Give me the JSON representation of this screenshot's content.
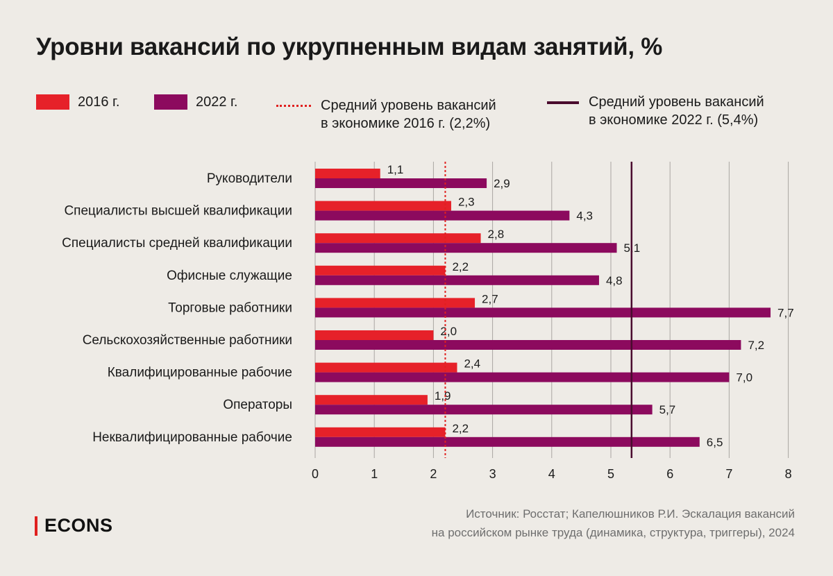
{
  "chart_data": {
    "type": "bar",
    "orientation": "horizontal",
    "title": "Уровни вакансий по укрупненным видам занятий, %",
    "categories": [
      "Руководители",
      "Специалисты высшей квалификации",
      "Специалисты средней квалификации",
      "Офисные служащие",
      "Торговые работники",
      "Сельскохозяйственные работники",
      "Квалифицированные рабочие",
      "Операторы",
      "Неквалифицированные рабочие"
    ],
    "series": [
      {
        "name": "2016 г.",
        "color": "#e62129",
        "values": [
          1.1,
          2.3,
          2.8,
          2.2,
          2.7,
          2.0,
          2.4,
          1.9,
          2.2
        ],
        "labels": [
          "1,1",
          "2,3",
          "2,8",
          "2,2",
          "2,7",
          "2,0",
          "2,4",
          "1,9",
          "2,2"
        ]
      },
      {
        "name": "2022 г.",
        "color": "#8c0a5e",
        "values": [
          2.9,
          4.3,
          5.1,
          4.8,
          7.7,
          7.2,
          7.0,
          5.7,
          6.5
        ],
        "labels": [
          "2,9",
          "4,3",
          "5,1",
          "4,8",
          "7,7",
          "7,2",
          "7,0",
          "5,7",
          "6,5"
        ]
      }
    ],
    "reference_lines": [
      {
        "name": "Средний уровень вакансий\nв экономике 2016 г. (2,2%)",
        "value": 2.2,
        "style": "dotted",
        "color": "#e0201f"
      },
      {
        "name": "Средний уровень вакансий\nв экономике 2022 г. (5,4%)",
        "value": 5.35,
        "style": "solid",
        "color": "#4a0b2e"
      }
    ],
    "xlim": [
      0,
      8
    ],
    "xticks": [
      0,
      1,
      2,
      3,
      4,
      5,
      6,
      7,
      8
    ],
    "grid": true,
    "legend_position": "top"
  },
  "brand": "ECONS",
  "source": "Источник: Росстат; Капелюшников Р.И. Эскалация вакансий\nна российском рынке труда (динамика, структура, триггеры), 2024"
}
